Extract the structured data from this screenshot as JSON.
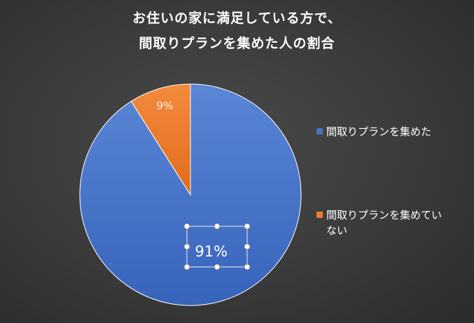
{
  "chart_data": {
    "type": "pie",
    "title_lines": [
      "お住いの家に満足している方で、",
      "間取りプランを集めた人の割合"
    ],
    "categories": [
      "間取りプランを集めた",
      "間取りプランを集めていない"
    ],
    "values": [
      91,
      9
    ],
    "data_labels": [
      "91%",
      "9%"
    ],
    "colors": [
      "#4472c4",
      "#ed7d31"
    ],
    "legend_position": "right",
    "selected_label": "91%"
  }
}
